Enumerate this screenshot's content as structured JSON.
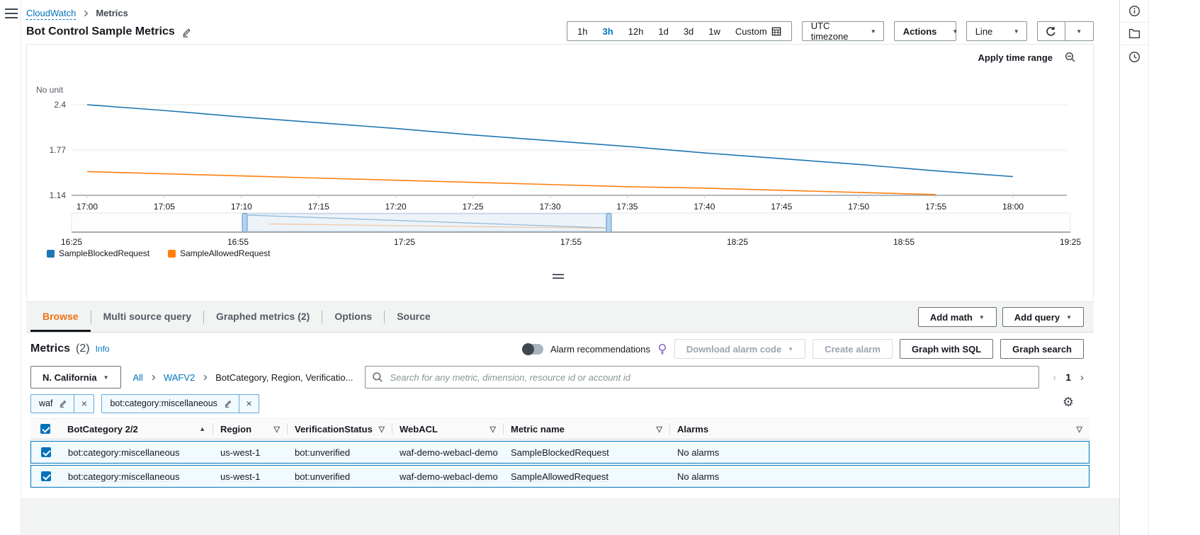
{
  "header": {
    "breadcrumb": {
      "root": "CloudWatch",
      "page": "Metrics"
    },
    "title": "Bot Control Sample Metrics"
  },
  "toolbar": {
    "ranges": [
      "1h",
      "3h",
      "12h",
      "1d",
      "3d",
      "1w"
    ],
    "active_range": "3h",
    "custom_label": "Custom",
    "timezone": "UTC timezone",
    "actions": "Actions",
    "chart_type": "Line",
    "apply_time_range": "Apply time range"
  },
  "chart_data": {
    "type": "line",
    "title": "Bot Control Sample Metrics",
    "ylabel": "No unit",
    "yticks": [
      2.4,
      1.77,
      1.14
    ],
    "ylim": [
      1.14,
      2.4
    ],
    "grid": true,
    "legend_position": "bottom-left",
    "x": [
      "17:00",
      "17:05",
      "17:10",
      "17:15",
      "17:20",
      "17:25",
      "17:30",
      "17:35",
      "17:40",
      "17:45",
      "17:50",
      "17:55",
      "18:00"
    ],
    "series": [
      {
        "name": "SampleBlockedRequest",
        "color": "#1f77b4",
        "values": [
          2.4,
          2.32,
          2.23,
          2.15,
          2.07,
          1.98,
          1.9,
          1.82,
          1.73,
          1.65,
          1.57,
          1.48,
          1.4
        ]
      },
      {
        "name": "SampleAllowedRequest",
        "color": "#ff7f0e",
        "values": [
          1.47,
          1.44,
          1.41,
          1.38,
          1.35,
          1.32,
          1.29,
          1.26,
          1.24,
          1.21,
          1.18,
          1.15,
          null
        ]
      }
    ],
    "timeline": {
      "ticks": [
        "16:25",
        "16:55",
        "17:25",
        "17:55",
        "18:25",
        "18:55",
        "19:25"
      ],
      "selection": [
        "17:00",
        "18:00"
      ]
    }
  },
  "tabs": {
    "items": [
      "Browse",
      "Multi source query",
      "Graphed metrics (2)",
      "Options",
      "Source"
    ],
    "active": "Browse"
  },
  "actions_bar": {
    "add_math": "Add math",
    "add_query": "Add query"
  },
  "metrics_panel": {
    "title": "Metrics",
    "count": "(2)",
    "info": "Info",
    "alarm_recommendations": "Alarm recommendations",
    "download_alarm_code": "Download alarm code",
    "create_alarm": "Create alarm",
    "graph_with_sql": "Graph with SQL",
    "graph_search": "Graph search"
  },
  "browse": {
    "region": "N. California",
    "path": [
      "All",
      "WAFV2",
      "BotCategory, Region, Verificatio..."
    ],
    "search_placeholder": "Search for any metric, dimension, resource id or account id",
    "page": "1"
  },
  "filters": [
    "waf",
    "bot:category:miscellaneous"
  ],
  "table": {
    "columns": [
      {
        "label": "BotCategory 2/2",
        "icon": "sort"
      },
      {
        "label": "Region",
        "icon": "filter"
      },
      {
        "label": "VerificationStatus",
        "icon": "filter"
      },
      {
        "label": "WebACL",
        "icon": "filter"
      },
      {
        "label": "Metric name",
        "icon": "filter"
      },
      {
        "label": "Alarms",
        "icon": "filter"
      }
    ],
    "rows": [
      {
        "selected": true,
        "cells": [
          "bot:category:miscellaneous",
          "us-west-1",
          "bot:unverified",
          "waf-demo-webacl-demo",
          "SampleBlockedRequest",
          "No alarms"
        ]
      },
      {
        "selected": true,
        "cells": [
          "bot:category:miscellaneous",
          "us-west-1",
          "bot:unverified",
          "waf-demo-webacl-demo",
          "SampleAllowedRequest",
          "No alarms"
        ]
      }
    ]
  },
  "colors": {
    "accent": "#0073bb",
    "active_tab": "#ec7211",
    "selected_row_bg": "#f1faff",
    "series_blocked": "#1f77b4",
    "series_allowed": "#ff7f0e"
  }
}
